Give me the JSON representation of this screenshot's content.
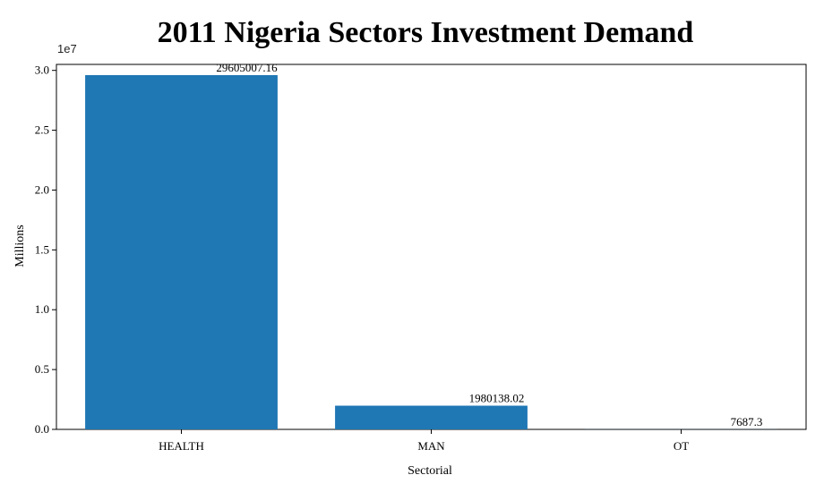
{
  "chart_data": {
    "type": "bar",
    "title": "2011 Nigeria Sectors Investment Demand",
    "xlabel": "Sectorial",
    "ylabel": "Millions",
    "y_scale_label": "1e7",
    "categories": [
      "HEALTH",
      "MAN",
      "OT"
    ],
    "values": [
      29605007.16,
      1980138.02,
      7687.3
    ],
    "data_labels": [
      "29605007.16",
      "1980138.02",
      "7687.3"
    ],
    "ylim": [
      0,
      30500000
    ],
    "yticks": [
      0,
      5000000,
      10000000,
      15000000,
      20000000,
      25000000,
      30000000
    ],
    "ytick_labels": [
      "0.0",
      "0.5",
      "1.0",
      "1.5",
      "2.0",
      "2.5",
      "3.0"
    ],
    "bar_color": "#1f77b4",
    "grid": false,
    "legend": "none"
  }
}
